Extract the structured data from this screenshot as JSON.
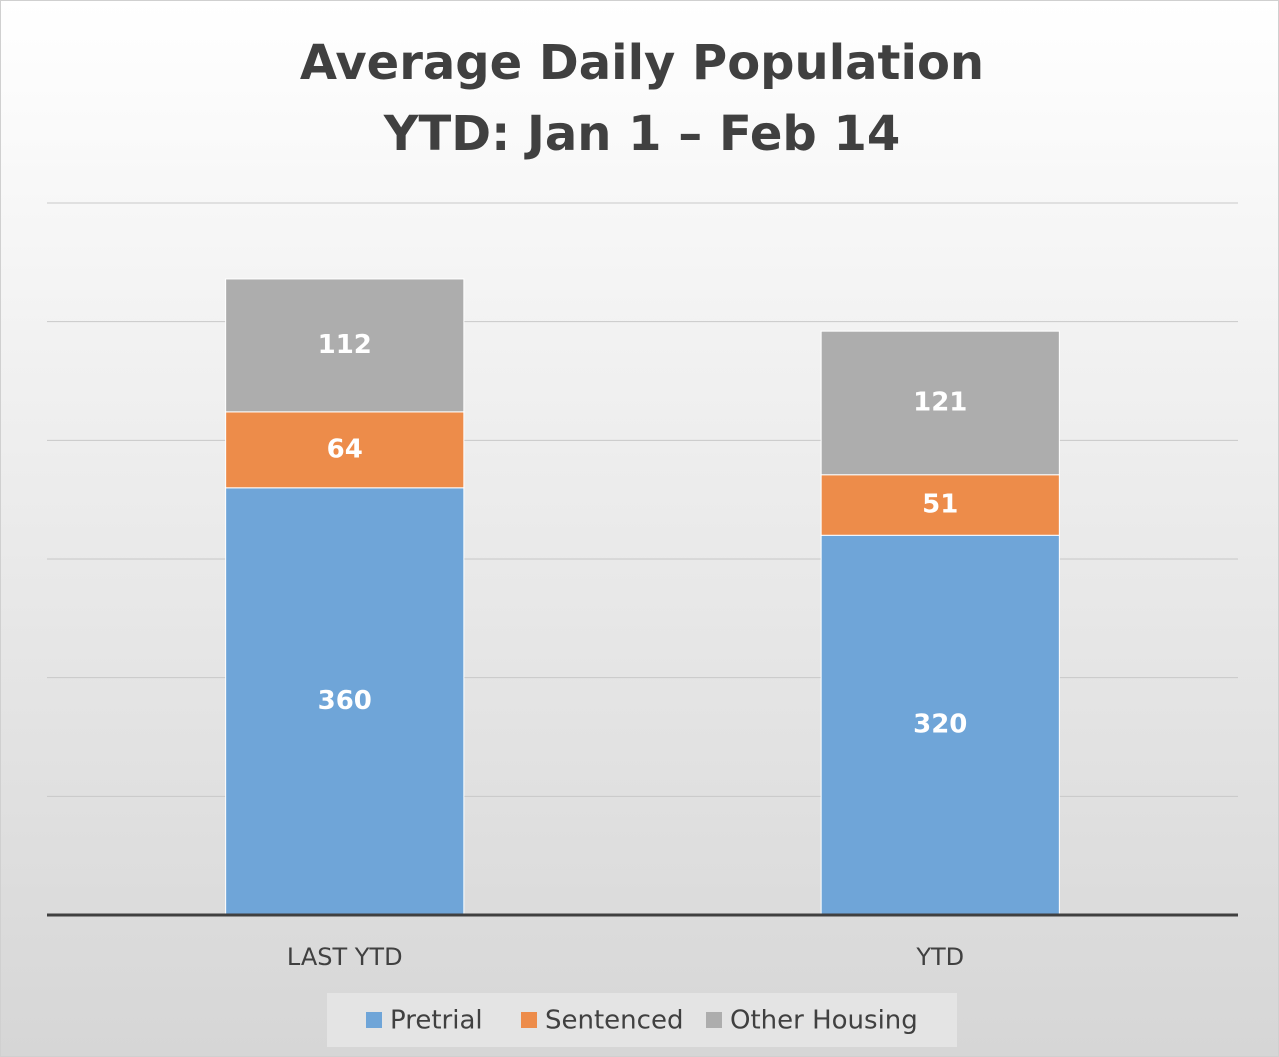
{
  "chart_data": {
    "type": "stacked_bar",
    "title": "Average Daily Population",
    "subtitle": "YTD: Jan 1 – Feb 14",
    "categories": [
      "LAST YTD",
      "YTD"
    ],
    "series": [
      {
        "name": "Pretrial",
        "color": "#6fa5d8",
        "values": [
          360,
          320
        ]
      },
      {
        "name": "Sentenced",
        "color": "#ed8c4a",
        "values": [
          64,
          51
        ]
      },
      {
        "name": "Other Housing",
        "color": "#adadad",
        "values": [
          112,
          121
        ]
      }
    ],
    "ylim": [
      0,
      600
    ],
    "yticks": [
      0,
      100,
      200,
      300,
      400,
      500,
      600
    ],
    "grid": true,
    "legend": "bottom"
  }
}
